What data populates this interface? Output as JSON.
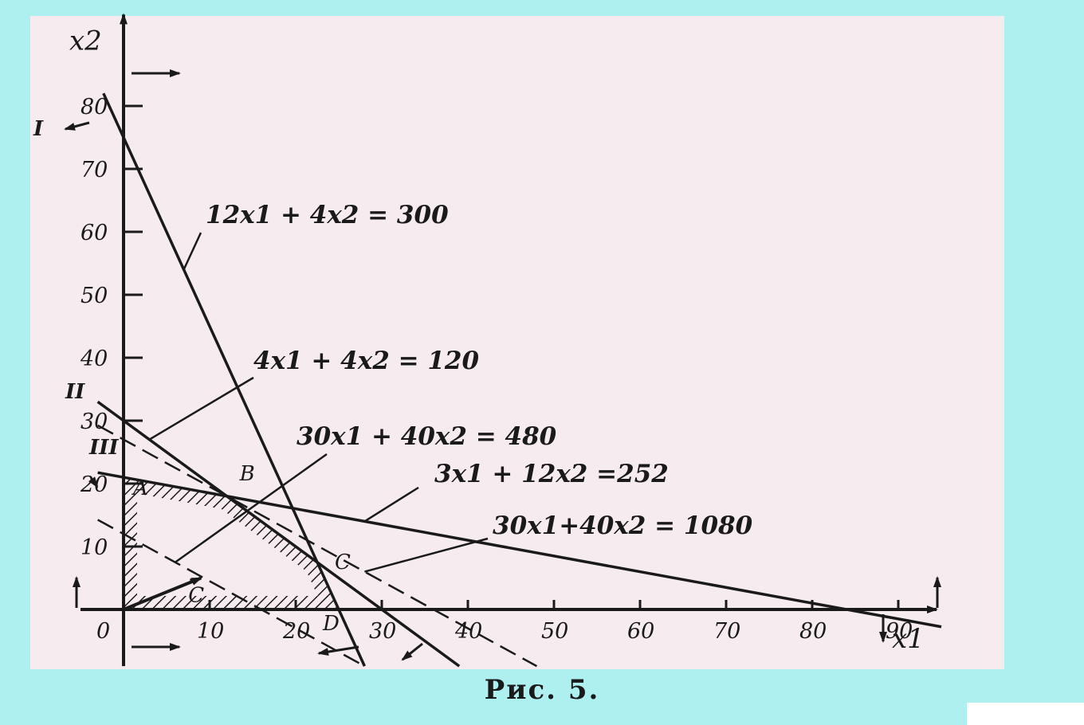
{
  "caption": "Рис. 5.",
  "chart_data": {
    "type": "line",
    "xlabel": "x1",
    "ylabel": "x2",
    "xlim": [
      -5,
      95
    ],
    "ylim": [
      -9,
      94
    ],
    "origin_label": "0",
    "x_ticks": [
      10,
      20,
      30,
      40,
      50,
      60,
      70,
      80,
      90
    ],
    "y_ticks": [
      10,
      20,
      30,
      40,
      50,
      60,
      70,
      80
    ],
    "constraints": [
      {
        "id": "I",
        "label": "12x1 + 4x2 = 300",
        "a": 12,
        "b": 4,
        "c": 300,
        "style": "solid",
        "roman": "I"
      },
      {
        "id": "II",
        "label": "4x1 + 4x2 = 120",
        "a": 4,
        "b": 4,
        "c": 120,
        "style": "solid",
        "roman": "II"
      },
      {
        "id": "III",
        "label": "3x1 + 12x2 =252",
        "a": 3,
        "b": 12,
        "c": 252,
        "style": "solid",
        "roman": "III"
      }
    ],
    "objective_lines": [
      {
        "label": "30x1 + 40x2 = 480",
        "a": 30,
        "b": 40,
        "c": 480,
        "style": "dashed"
      },
      {
        "label": "30x1+40x2 = 1080",
        "a": 30,
        "b": 40,
        "c": 1080,
        "style": "dashed"
      }
    ],
    "points": [
      {
        "name": "A",
        "x": 0,
        "y": 21
      },
      {
        "name": "B",
        "x": 12,
        "y": 18
      },
      {
        "name": "C",
        "x": 22.5,
        "y": 7.5
      },
      {
        "name": "D",
        "x": 25,
        "y": 0
      }
    ],
    "feasible_region": [
      [
        0,
        0
      ],
      [
        0,
        21
      ],
      [
        12,
        18
      ],
      [
        22.5,
        7.5
      ],
      [
        25,
        0
      ]
    ],
    "gradient_vector": {
      "label": "C",
      "from": [
        0,
        0
      ],
      "to": [
        9,
        5
      ]
    }
  }
}
